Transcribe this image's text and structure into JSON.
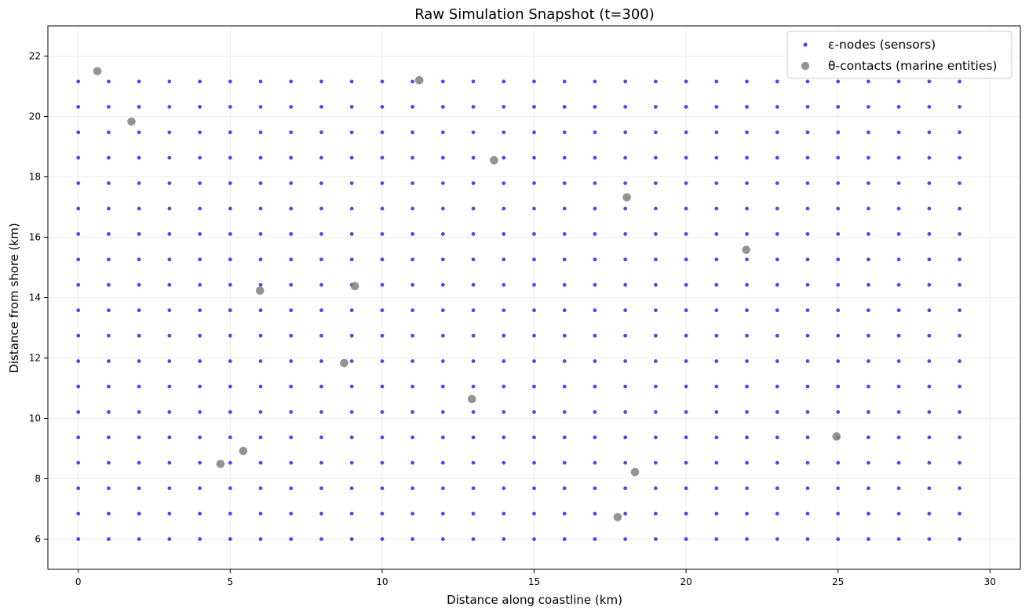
{
  "chart_data": {
    "type": "scatter",
    "title": "Raw Simulation Snapshot (t=300)",
    "xlabel": "Distance along coastline (km)",
    "ylabel": "Distance from shore (km)",
    "xlim": [
      -1,
      31
    ],
    "ylim": [
      5,
      23
    ],
    "xticks": [
      0,
      5,
      10,
      15,
      20,
      25,
      30
    ],
    "yticks": [
      6,
      8,
      10,
      12,
      14,
      16,
      18,
      20,
      22
    ],
    "grid": true,
    "legend_position": "top-right",
    "series": [
      {
        "name": "ε-nodes (sensors)",
        "marker": "small-dot",
        "color": "#1a1aff",
        "grid": {
          "x_start": 0,
          "x_step": 1,
          "x_count": 30,
          "y_start": 6.0,
          "y_step": 0.8421,
          "y_count": 19
        }
      },
      {
        "name": "θ-contacts (marine entities)",
        "marker": "large-dot",
        "color": "#808080",
        "points": [
          {
            "x": 0.63,
            "y": 21.5
          },
          {
            "x": 1.75,
            "y": 19.83
          },
          {
            "x": 11.22,
            "y": 21.2
          },
          {
            "x": 13.68,
            "y": 18.55
          },
          {
            "x": 18.05,
            "y": 17.32
          },
          {
            "x": 21.98,
            "y": 15.58
          },
          {
            "x": 5.98,
            "y": 14.23
          },
          {
            "x": 9.1,
            "y": 14.38
          },
          {
            "x": 8.75,
            "y": 11.83
          },
          {
            "x": 12.95,
            "y": 10.64
          },
          {
            "x": 24.95,
            "y": 9.4
          },
          {
            "x": 4.68,
            "y": 8.49
          },
          {
            "x": 5.43,
            "y": 8.92
          },
          {
            "x": 18.32,
            "y": 8.22
          },
          {
            "x": 17.75,
            "y": 6.73
          }
        ]
      }
    ]
  }
}
